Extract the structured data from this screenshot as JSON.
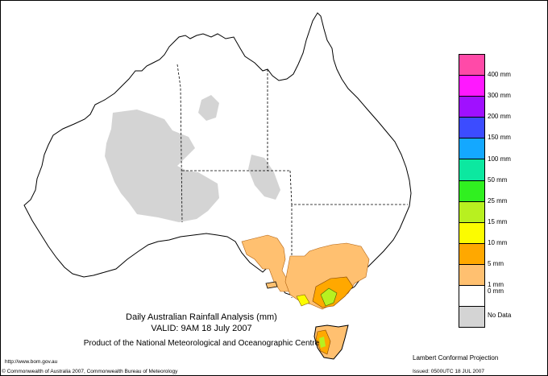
{
  "title_line1": "Daily Australian Rainfall Analysis (mm)",
  "title_line2": "VALID: 9AM 18 July 2007",
  "title_line3": "Product of the National Meteorological and Oceanographic Centre",
  "website": "http://www.bom.gov.au",
  "copyright": "© Commonwealth of Australia 2007, Commonwealth Bureau of Meteorology",
  "projection": "Lambert Conformal Projection",
  "issued": "Issued: 0500UTC 18 JUL 2007",
  "legend": [
    {
      "label": "400 mm",
      "color": "#ff4aa8"
    },
    {
      "label": "300 mm",
      "color": "#ff18ff"
    },
    {
      "label": "200 mm",
      "color": "#a010ff"
    },
    {
      "label": "150 mm",
      "color": "#3c4cff"
    },
    {
      "label": "100 mm",
      "color": "#14a8ff"
    },
    {
      "label": "50 mm",
      "color": "#0ce8a0"
    },
    {
      "label": "25 mm",
      "color": "#30f020"
    },
    {
      "label": "15 mm",
      "color": "#b8f020"
    },
    {
      "label": "10 mm",
      "color": "#fcfc00"
    },
    {
      "label": "5 mm",
      "color": "#ffa800"
    },
    {
      "label": "1 mm",
      "color": "#ffc070"
    },
    {
      "label": "0 mm",
      "color": "#ffffff"
    },
    {
      "label": "No Data",
      "color": "#d4d4d4"
    }
  ]
}
